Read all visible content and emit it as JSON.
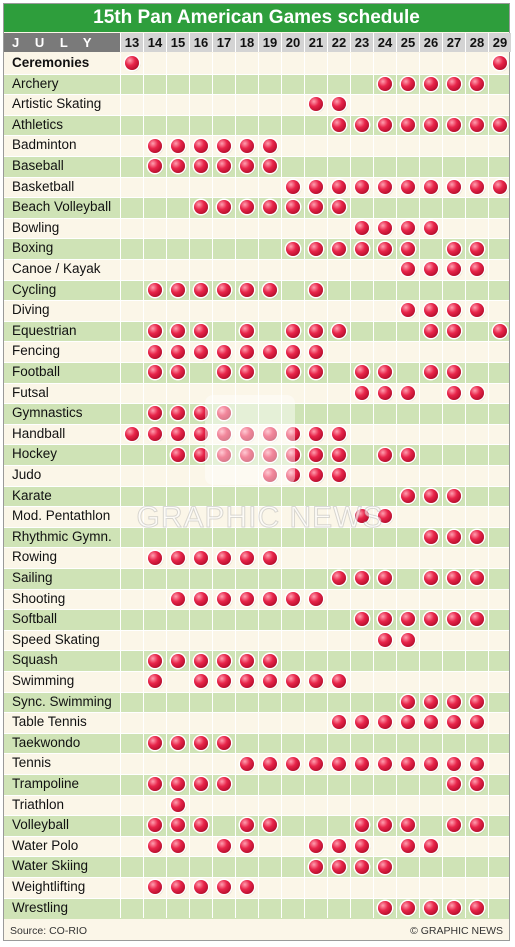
{
  "title": "15th Pan American Games schedule",
  "month_label": "J U L Y",
  "watermark": "GRAPHIC NEWS",
  "footer": {
    "source": "Source: CO-RIO",
    "credit": "© GRAPHIC NEWS"
  },
  "colors": {
    "title_bg": "#2e9e3c",
    "row_light": "#fbf6e8",
    "row_green": "#cfe3b6",
    "dot": "#d3173b"
  },
  "chart_data": {
    "type": "table",
    "title": "15th Pan American Games schedule",
    "month": "J U L Y",
    "days": [
      13,
      14,
      15,
      16,
      17,
      18,
      19,
      20,
      21,
      22,
      23,
      24,
      25,
      26,
      27,
      28,
      29
    ],
    "rows": [
      {
        "sport": "Ceremonies",
        "bold": true,
        "days": [
          13,
          29
        ]
      },
      {
        "sport": "Archery",
        "days": [
          24,
          25,
          26,
          27,
          28
        ]
      },
      {
        "sport": "Artistic Skating",
        "days": [
          21,
          22
        ]
      },
      {
        "sport": "Athletics",
        "days": [
          22,
          23,
          24,
          25,
          26,
          27,
          28,
          29
        ]
      },
      {
        "sport": "Badminton",
        "days": [
          14,
          15,
          16,
          17,
          18,
          19
        ]
      },
      {
        "sport": "Baseball",
        "days": [
          14,
          15,
          16,
          17,
          18,
          19
        ]
      },
      {
        "sport": "Basketball",
        "days": [
          20,
          21,
          22,
          23,
          24,
          25,
          26,
          27,
          28,
          29
        ]
      },
      {
        "sport": "Beach Volleyball",
        "days": [
          16,
          17,
          18,
          19,
          20,
          21,
          22
        ]
      },
      {
        "sport": "Bowling",
        "days": [
          23,
          24,
          25,
          26
        ]
      },
      {
        "sport": "Boxing",
        "days": [
          20,
          21,
          22,
          23,
          24,
          25,
          27,
          28
        ]
      },
      {
        "sport": "Canoe / Kayak",
        "days": [
          25,
          26,
          27,
          28
        ]
      },
      {
        "sport": "Cycling",
        "days": [
          14,
          15,
          16,
          17,
          18,
          19,
          21
        ]
      },
      {
        "sport": "Diving",
        "days": [
          25,
          26,
          27,
          28
        ]
      },
      {
        "sport": "Equestrian",
        "days": [
          14,
          15,
          16,
          18,
          20,
          21,
          22,
          26,
          27,
          29
        ]
      },
      {
        "sport": "Fencing",
        "days": [
          14,
          15,
          16,
          17,
          18,
          19,
          20,
          21
        ]
      },
      {
        "sport": "Football",
        "days": [
          14,
          15,
          17,
          18,
          20,
          21,
          23,
          24,
          26,
          27
        ]
      },
      {
        "sport": "Futsal",
        "days": [
          23,
          24,
          25,
          27,
          28
        ]
      },
      {
        "sport": "Gymnastics",
        "days": [
          14,
          15,
          16,
          17
        ]
      },
      {
        "sport": "Handball",
        "days": [
          13,
          14,
          15,
          16,
          17,
          18,
          19,
          20,
          21,
          22
        ]
      },
      {
        "sport": "Hockey",
        "days": [
          15,
          16,
          17,
          18,
          19,
          20,
          21,
          22,
          24,
          25
        ]
      },
      {
        "sport": "Judo",
        "days": [
          19,
          20,
          21,
          22
        ]
      },
      {
        "sport": "Karate",
        "days": [
          25,
          26,
          27
        ]
      },
      {
        "sport": "Mod. Pentathlon",
        "days": [
          23,
          24
        ]
      },
      {
        "sport": "Rhythmic Gymn.",
        "days": [
          26,
          27,
          28
        ]
      },
      {
        "sport": "Rowing",
        "days": [
          14,
          15,
          16,
          17,
          18,
          19
        ]
      },
      {
        "sport": "Sailing",
        "days": [
          22,
          23,
          24,
          26,
          27,
          28
        ]
      },
      {
        "sport": "Shooting",
        "days": [
          15,
          16,
          17,
          18,
          19,
          20,
          21
        ]
      },
      {
        "sport": "Softball",
        "days": [
          23,
          24,
          25,
          26,
          27,
          28
        ]
      },
      {
        "sport": "Speed Skating",
        "days": [
          24,
          25
        ]
      },
      {
        "sport": "Squash",
        "days": [
          14,
          15,
          16,
          17,
          18,
          19
        ]
      },
      {
        "sport": "Swimming",
        "days": [
          14,
          16,
          17,
          18,
          19,
          20,
          21,
          22
        ]
      },
      {
        "sport": "Sync. Swimming",
        "days": [
          25,
          26,
          27,
          28
        ]
      },
      {
        "sport": "Table Tennis",
        "days": [
          22,
          23,
          24,
          25,
          26,
          27,
          28
        ]
      },
      {
        "sport": "Taekwondo",
        "days": [
          14,
          15,
          16,
          17
        ]
      },
      {
        "sport": "Tennis",
        "days": [
          18,
          19,
          20,
          21,
          22,
          23,
          24,
          25,
          26,
          27,
          28
        ]
      },
      {
        "sport": "Trampoline",
        "days": [
          14,
          15,
          16,
          17,
          27,
          28
        ]
      },
      {
        "sport": "Triathlon",
        "days": [
          15
        ]
      },
      {
        "sport": "Volleyball",
        "days": [
          14,
          15,
          16,
          18,
          19,
          23,
          24,
          25,
          27,
          28
        ]
      },
      {
        "sport": "Water Polo",
        "days": [
          14,
          15,
          17,
          18,
          21,
          22,
          23,
          25,
          26
        ]
      },
      {
        "sport": "Water Skiing",
        "days": [
          21,
          22,
          23,
          24
        ]
      },
      {
        "sport": "Weightlifting",
        "days": [
          14,
          15,
          16,
          17,
          18
        ]
      },
      {
        "sport": "Wrestling",
        "days": [
          24,
          25,
          26,
          27,
          28
        ]
      }
    ]
  }
}
